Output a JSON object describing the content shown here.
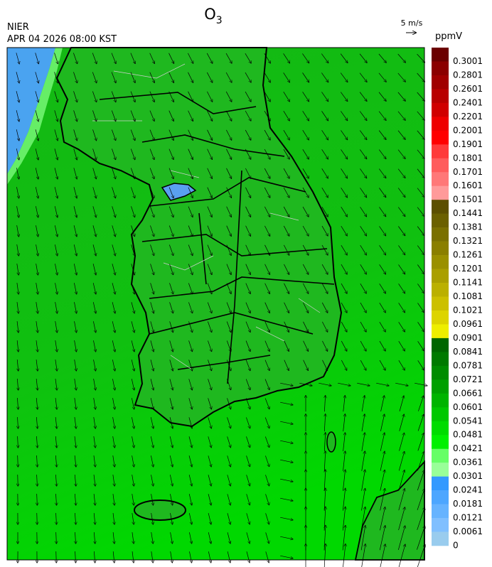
{
  "header": {
    "title": {
      "text": "O",
      "subscript": "3"
    },
    "agency": "NIER",
    "timestamp": "APR 04 2026 08:00 KST",
    "wind_reference": "5 m/s"
  },
  "colorbar": {
    "unit": "ppmV",
    "levels": [
      0.3001,
      0.2801,
      0.2601,
      0.2401,
      0.2201,
      0.2001,
      0.1901,
      0.1801,
      0.1701,
      0.1601,
      0.1501,
      0.1441,
      0.1381,
      0.1321,
      0.1261,
      0.1201,
      0.1141,
      0.1081,
      0.1021,
      0.0961,
      0.0901,
      0.0841,
      0.0781,
      0.0721,
      0.0661,
      0.0601,
      0.0541,
      0.0481,
      0.0421,
      0.0361,
      0.0301,
      0.0241,
      0.0181,
      0.0121,
      0.0061,
      0
    ],
    "colors": [
      "#6b0000",
      "#8b0000",
      "#a00000",
      "#b80000",
      "#d00000",
      "#ee0000",
      "#ff0000",
      "#ff3a3a",
      "#ff5c5c",
      "#ff7878",
      "#ff9a9a",
      "#5c4f00",
      "#6b6000",
      "#7a7000",
      "#8a7f00",
      "#9a9000",
      "#aa9f00",
      "#bbb000",
      "#ccc000",
      "#ddd400",
      "#eeee00",
      "#006600",
      "#007a00",
      "#008c00",
      "#00a000",
      "#00b400",
      "#00c800",
      "#00dc00",
      "#00f000",
      "#66ff66",
      "#99ff99",
      "#3399ff",
      "#4da6ff",
      "#66b3ff",
      "#80bfff",
      "#99ccee"
    ]
  }
}
